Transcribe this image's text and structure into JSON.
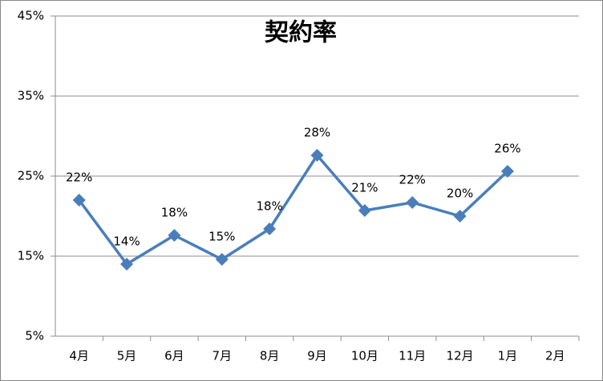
{
  "chart_data": {
    "type": "line",
    "title": "契約率",
    "categories": [
      "4月",
      "5月",
      "6月",
      "7月",
      "8月",
      "9月",
      "10月",
      "11月",
      "12月",
      "1月",
      "2月"
    ],
    "series": [
      {
        "color": "#4a7ebb",
        "values": [
          22,
          14,
          17.6,
          14.6,
          18.4,
          27.6,
          20.7,
          21.7,
          20,
          25.6,
          null
        ],
        "value_labels": [
          "22%",
          "14%",
          "18%",
          "15%",
          "18%",
          "28%",
          "21%",
          "22%",
          "20%",
          "26%",
          null
        ]
      }
    ],
    "ylim": [
      5,
      45
    ],
    "yticks": [
      {
        "value": 5,
        "label": "5%"
      },
      {
        "value": 15,
        "label": "15%"
      },
      {
        "value": 25,
        "label": "25%"
      },
      {
        "value": 35,
        "label": "35%"
      },
      {
        "value": 45,
        "label": "45%"
      }
    ],
    "grid": true
  }
}
